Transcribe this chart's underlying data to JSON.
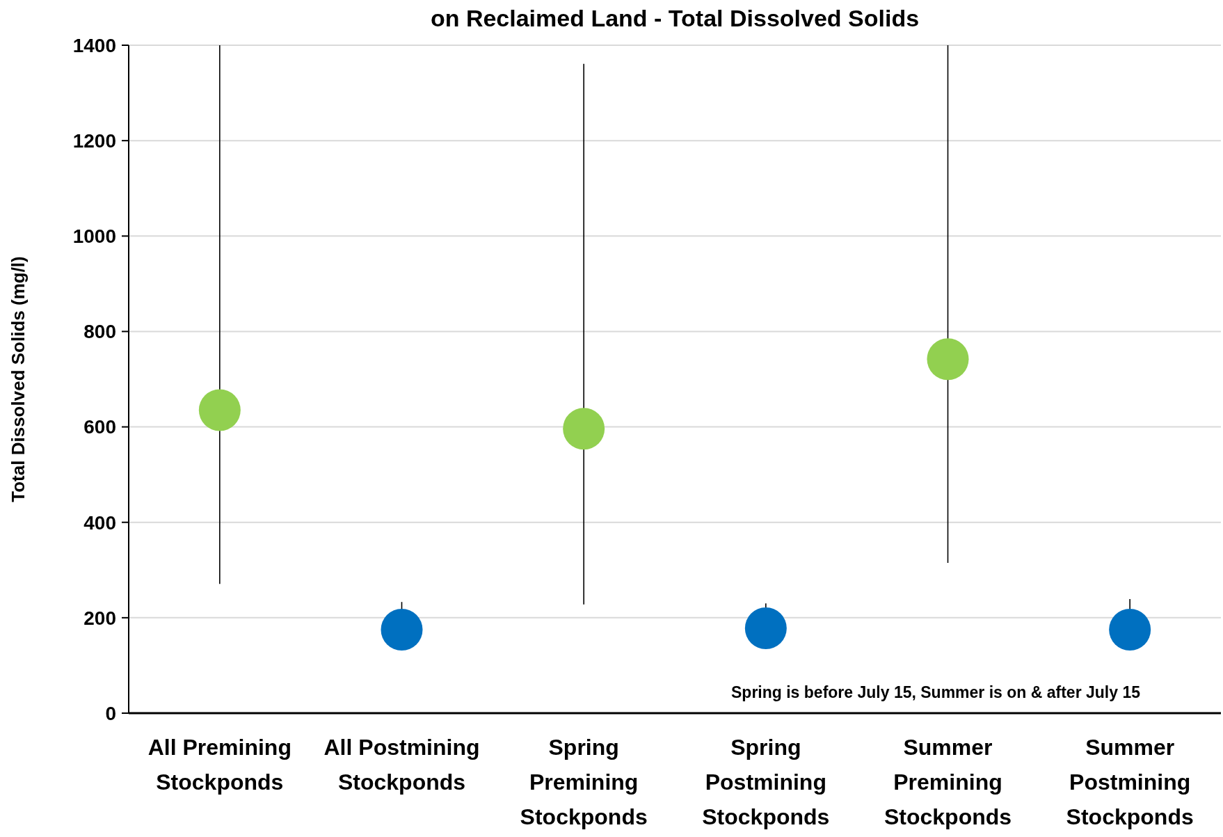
{
  "chart_data": {
    "type": "scatter",
    "title": "on Reclaimed Land - Total Dissolved Solids",
    "ylabel": "Total Dissolved Solids (mg/l)",
    "categories": [
      "All Premining Stockponds",
      "All Postmining Stockponds",
      "Spring Premining Stockponds",
      "Spring Postmining Stockponds",
      "Summer Premining Stockponds",
      "Summer Postmining Stockponds"
    ],
    "series": [
      {
        "color": "#92d050",
        "values": [
          635,
          null,
          596,
          null,
          742,
          null
        ],
        "errors": [
          [
            271,
            1400
          ],
          null,
          [
            228,
            1361
          ],
          null,
          [
            315,
            1400
          ],
          null
        ]
      },
      {
        "color": "#0070c0",
        "values": [
          null,
          175,
          null,
          178,
          null,
          175
        ],
        "errors": [
          null,
          [
            175,
            233
          ],
          null,
          [
            178,
            230
          ],
          null,
          [
            175,
            239
          ]
        ]
      }
    ],
    "ylim": [
      0,
      1400
    ],
    "yticks": [
      0,
      200,
      400,
      600,
      800,
      1000,
      1200,
      1400
    ],
    "grid": "y",
    "marker": "circle",
    "annotations": [
      "Spring is before July 15, Summer is on & after July 15"
    ]
  }
}
